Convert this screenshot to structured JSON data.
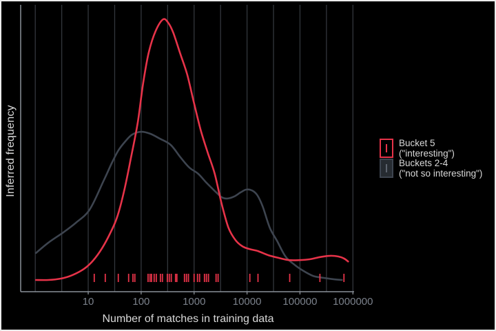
{
  "figure": {
    "background": "#000000",
    "border_color": "#ececec"
  },
  "chart_data": {
    "type": "line",
    "subtype": "density-with-rug",
    "title": "",
    "xlabel": "Number of matches in training data",
    "ylabel": "Inferred frequency",
    "x_scale": "log10",
    "x_ticks": [
      10,
      100,
      1000,
      10000,
      100000,
      1000000
    ],
    "x_tick_labels": [
      "10",
      "100",
      "1000",
      "10000",
      "100000",
      "1000000"
    ],
    "xlim_log10": [
      -0.28,
      6.02
    ],
    "ylim": [
      0,
      1.05
    ],
    "grid": true,
    "gridlines_log10": [
      0,
      0.5,
      1,
      1.5,
      2,
      2.5,
      3,
      3.5,
      4,
      4.5,
      5,
      5.5,
      6
    ],
    "legend_position": "right",
    "series": [
      {
        "name": "Bucket 5 (\"interesting\")",
        "color": "#e73349",
        "points_log10x_density": [
          [
            0.013,
            0.043
          ],
          [
            0.247,
            0.043
          ],
          [
            0.481,
            0.048
          ],
          [
            0.701,
            0.061
          ],
          [
            0.922,
            0.084
          ],
          [
            1.091,
            0.114
          ],
          [
            1.26,
            0.159
          ],
          [
            1.416,
            0.215
          ],
          [
            1.545,
            0.273
          ],
          [
            1.675,
            0.367
          ],
          [
            1.805,
            0.489
          ],
          [
            1.935,
            0.62
          ],
          [
            2.039,
            0.767
          ],
          [
            2.143,
            0.878
          ],
          [
            2.273,
            0.957
          ],
          [
            2.416,
            1.0
          ],
          [
            2.519,
            0.985
          ],
          [
            2.61,
            0.949
          ],
          [
            2.74,
            0.873
          ],
          [
            2.87,
            0.797
          ],
          [
            3.0,
            0.691
          ],
          [
            3.13,
            0.59
          ],
          [
            3.26,
            0.509
          ],
          [
            3.39,
            0.433
          ],
          [
            3.519,
            0.324
          ],
          [
            3.649,
            0.235
          ],
          [
            3.779,
            0.19
          ],
          [
            3.909,
            0.167
          ],
          [
            4.039,
            0.157
          ],
          [
            4.208,
            0.149
          ],
          [
            4.403,
            0.134
          ],
          [
            4.597,
            0.124
          ],
          [
            4.792,
            0.116
          ],
          [
            4.987,
            0.116
          ],
          [
            5.182,
            0.119
          ],
          [
            5.377,
            0.127
          ],
          [
            5.571,
            0.132
          ],
          [
            5.727,
            0.129
          ],
          [
            5.831,
            0.122
          ],
          [
            5.909,
            0.111
          ]
        ]
      },
      {
        "name": "Buckets 2-4 (\"not so interesting\")",
        "color": "#3d444f",
        "points_log10x_density": [
          [
            0.013,
            0.142
          ],
          [
            0.247,
            0.18
          ],
          [
            0.532,
            0.218
          ],
          [
            0.766,
            0.253
          ],
          [
            1.026,
            0.301
          ],
          [
            1.286,
            0.405
          ],
          [
            1.442,
            0.471
          ],
          [
            1.571,
            0.519
          ],
          [
            1.701,
            0.552
          ],
          [
            1.831,
            0.577
          ],
          [
            2.0,
            0.587
          ],
          [
            2.169,
            0.58
          ],
          [
            2.351,
            0.562
          ],
          [
            2.558,
            0.539
          ],
          [
            2.74,
            0.494
          ],
          [
            2.909,
            0.456
          ],
          [
            3.078,
            0.433
          ],
          [
            3.234,
            0.4
          ],
          [
            3.39,
            0.37
          ],
          [
            3.519,
            0.347
          ],
          [
            3.623,
            0.342
          ],
          [
            3.753,
            0.349
          ],
          [
            3.883,
            0.365
          ],
          [
            3.987,
            0.375
          ],
          [
            4.091,
            0.372
          ],
          [
            4.195,
            0.354
          ],
          [
            4.299,
            0.311
          ],
          [
            4.429,
            0.235
          ],
          [
            4.571,
            0.185
          ],
          [
            4.727,
            0.129
          ],
          [
            4.896,
            0.099
          ],
          [
            5.052,
            0.078
          ],
          [
            5.247,
            0.058
          ],
          [
            5.442,
            0.051
          ],
          [
            5.623,
            0.046
          ],
          [
            5.792,
            0.043
          ]
        ]
      }
    ],
    "rug": {
      "series": "Bucket 5 (\"interesting\")",
      "color": "#e73349",
      "values": [
        13,
        21,
        37,
        58,
        70,
        76,
        135,
        147,
        157,
        176,
        193,
        231,
        252,
        312,
        340,
        371,
        446,
        473,
        658,
        718,
        783,
        1000,
        1160,
        1270,
        1570,
        1710,
        1870,
        2600,
        2840,
        11300,
        16100,
        64000,
        238000,
        677000
      ]
    }
  },
  "legend": {
    "entries": [
      {
        "line1": "Bucket 5",
        "line2": "(\"interesting\")",
        "color": "#e73349",
        "key": "red-outlined-box-with-rug-tick"
      },
      {
        "line1": "Buckets 2-4",
        "line2": "(\"not so interesting\")",
        "color": "#3d444f",
        "key": "gray-box-with-rug-tick"
      }
    ]
  },
  "colors": {
    "gridline": "#33373d",
    "axis": "#8b9199",
    "tick_label": "#7b818b",
    "axis_title": "#d9d9d9",
    "legend_text": "#d9d9d9"
  }
}
